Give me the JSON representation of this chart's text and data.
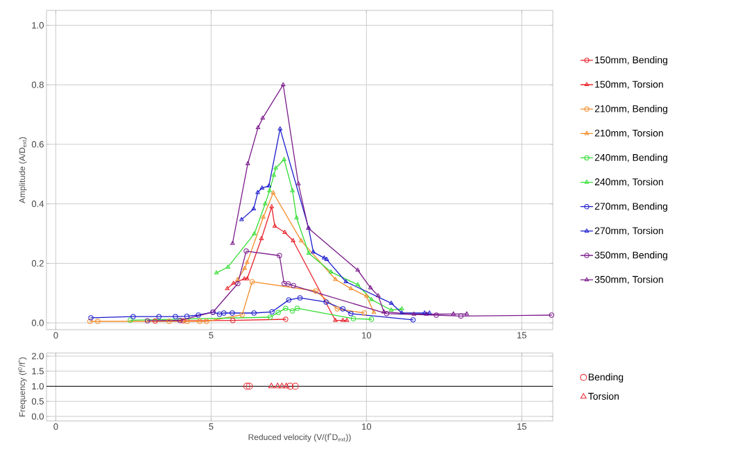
{
  "chart_data": [
    {
      "type": "line",
      "ylabel": "Amplitude (A/D$_{ext}$)",
      "xlim": [
        -0.3,
        16
      ],
      "ylim": [
        -0.023,
        1.05
      ],
      "xticks": [
        0,
        5,
        10,
        15
      ],
      "yticks": [
        {
          "value": 0,
          "label": "0.0"
        },
        {
          "value": 0.2,
          "label": "0.2"
        },
        {
          "value": 0.4,
          "label": "0.4"
        },
        {
          "value": 0.6,
          "label": "0.6"
        },
        {
          "value": 0.8,
          "label": "0.8"
        },
        {
          "value": 1,
          "label": "1.0"
        }
      ],
      "grid": true,
      "legend": "right",
      "series": [
        {
          "name": "150mm, Bending",
          "color": "#e8222a",
          "marker": "circle",
          "x": [
            3.2,
            4.1,
            5.7,
            7.4
          ],
          "values": [
            0.006,
            0.007,
            0.008,
            0.012
          ]
        },
        {
          "name": "150mm, Torsion",
          "color": "#e8222a",
          "marker": "triangle",
          "x": [
            5.52,
            5.72,
            6.07,
            6.16,
            6.62,
            6.95,
            7.05,
            7.37,
            7.64,
            9.0,
            9.24,
            9.37
          ],
          "values": [
            0.115,
            0.133,
            0.148,
            0.148,
            0.283,
            0.39,
            0.325,
            0.304,
            0.276,
            0.008,
            0.008,
            0.008
          ]
        },
        {
          "name": "210mm, Bending",
          "color": "#f28c28",
          "marker": "circle",
          "x": [
            1.1,
            1.35,
            3.65,
            4.23,
            4.63,
            4.85,
            6.0,
            6.32,
            8.37,
            9.06,
            9.93
          ],
          "values": [
            0.005,
            0.005,
            0.005,
            0.005,
            0.005,
            0.005,
            0.027,
            0.138,
            0.107,
            0.047,
            0.033
          ]
        },
        {
          "name": "210mm, Torsion",
          "color": "#f28c28",
          "marker": "triangle",
          "x": [
            5.85,
            6.08,
            6.16,
            6.68,
            7.0,
            7.9,
            9.0,
            9.5,
            10.0,
            10.24
          ],
          "values": [
            0.145,
            0.183,
            0.203,
            0.355,
            0.437,
            0.276,
            0.146,
            0.115,
            0.09,
            0.035
          ]
        },
        {
          "name": "240mm, Bending",
          "color": "#33dd33",
          "marker": "circle",
          "x": [
            2.4,
            6.9,
            7.16,
            7.4,
            7.62,
            7.77,
            9.58,
            10.16
          ],
          "values": [
            0.009,
            0.019,
            0.035,
            0.049,
            0.04,
            0.049,
            0.014,
            0.012
          ]
        },
        {
          "name": "240mm, Torsion",
          "color": "#33dd33",
          "marker": "triangle",
          "x": [
            5.17,
            5.54,
            6.39,
            6.74,
            6.88,
            7.02,
            7.08,
            7.35,
            7.62,
            7.75,
            8.14,
            8.86,
            9.72,
            10.16,
            10.8,
            11.14
          ],
          "values": [
            0.168,
            0.187,
            0.299,
            0.4,
            0.444,
            0.496,
            0.52,
            0.549,
            0.444,
            0.353,
            0.234,
            0.171,
            0.128,
            0.078,
            0.043,
            0.047
          ]
        },
        {
          "name": "270mm, Bending",
          "color": "#1a1acc",
          "marker": "circle",
          "x": [
            1.13,
            2.49,
            3.32,
            3.85,
            4.22,
            4.59,
            5.06,
            5.27,
            5.41,
            5.68,
            6.38,
            6.96,
            7.5,
            7.86,
            8.7,
            9.24,
            9.5,
            11.5
          ],
          "values": [
            0.017,
            0.021,
            0.021,
            0.021,
            0.022,
            0.026,
            0.036,
            0.029,
            0.033,
            0.033,
            0.033,
            0.037,
            0.077,
            0.084,
            0.07,
            0.047,
            0.031,
            0.01
          ]
        },
        {
          "name": "270mm, Torsion",
          "color": "#1a1acc",
          "marker": "triangle",
          "x": [
            5.98,
            6.37,
            6.5,
            6.64,
            6.86,
            7.22,
            8.14,
            8.29,
            8.64,
            8.72,
            9.34,
            10.8,
            11.14,
            11.87,
            12.03
          ],
          "values": [
            0.347,
            0.383,
            0.438,
            0.453,
            0.46,
            0.652,
            0.318,
            0.238,
            0.218,
            0.213,
            0.138,
            0.066,
            0.033,
            0.033,
            0.033
          ]
        },
        {
          "name": "350mm, Bending",
          "color": "#7a1a8a",
          "marker": "circle",
          "x": [
            2.95,
            4.0,
            5.06,
            5.86,
            6.13,
            7.2,
            7.35,
            7.48,
            7.65,
            10.65,
            12.25,
            13.04,
            15.96
          ],
          "values": [
            0.007,
            0.008,
            0.036,
            0.132,
            0.241,
            0.226,
            0.132,
            0.131,
            0.125,
            0.031,
            0.026,
            0.023,
            0.026
          ]
        },
        {
          "name": "350mm, Torsion",
          "color": "#7a1a8a",
          "marker": "triangle",
          "x": [
            5.69,
            6.18,
            6.51,
            6.66,
            7.32,
            7.81,
            8.13,
            9.72,
            10.13,
            10.38,
            10.56,
            11.53,
            11.93,
            12.8,
            13.23
          ],
          "values": [
            0.267,
            0.535,
            0.656,
            0.688,
            0.8,
            0.467,
            0.318,
            0.177,
            0.118,
            0.091,
            0.037,
            0.029,
            0.029,
            0.03,
            0.03
          ]
        }
      ]
    },
    {
      "type": "scatter",
      "xlabel": "Reduced velocity (V/(f$^{*}$D$_{ext}$))",
      "ylabel": "Frequency (f$^{0}$/f$^{*}$)",
      "xlim": [
        -0.3,
        16
      ],
      "ylim": [
        -0.15,
        2.1
      ],
      "xticks": [
        0,
        5,
        10,
        15
      ],
      "yticks": [
        {
          "value": 0,
          "label": "0.0"
        },
        {
          "value": 0.5,
          "label": "0.5"
        },
        {
          "value": 1,
          "label": "1.0"
        },
        {
          "value": 1.5,
          "label": "1.5"
        },
        {
          "value": 2,
          "label": "2.0"
        }
      ],
      "grid": true,
      "legend": "right",
      "ref_lines": [
        {
          "axis": "y",
          "value": 1,
          "color": "#000000"
        }
      ],
      "series": [
        {
          "name": "Bending",
          "color": "#e8222a",
          "marker": "circle",
          "x": [
            6.15,
            6.23,
            7.54,
            7.71
          ],
          "values": [
            1,
            1,
            1,
            1
          ]
        },
        {
          "name": "Torsion",
          "color": "#e8222a",
          "marker": "triangle",
          "x": [
            6.94,
            7.14,
            7.28,
            7.42
          ],
          "values": [
            1,
            1,
            1,
            1
          ]
        }
      ]
    }
  ]
}
